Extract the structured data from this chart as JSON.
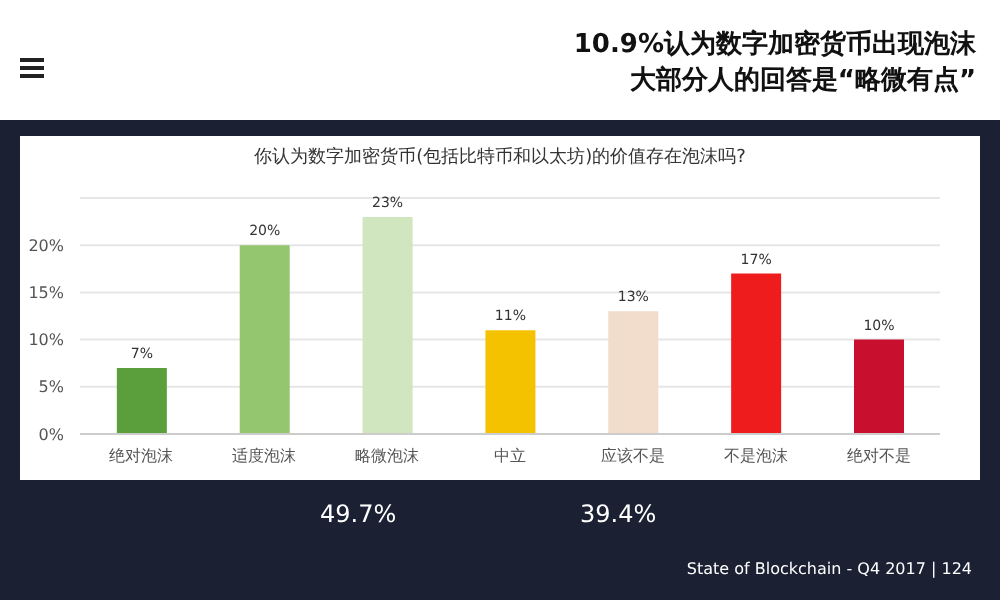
{
  "chart_data": {
    "type": "bar",
    "title": "你认为数字加密货币(包括比特币和以太坊)的价值存在泡沫吗?",
    "subtitle": "10.9%认为数字加密货币出现泡沫",
    "categories": [
      "绝对泡沫",
      "适度泡沫",
      "略微泡沫",
      "中立",
      "应该不是",
      "不是泡沫",
      "绝对不是"
    ],
    "values": [
      7,
      20,
      23,
      11,
      13,
      17,
      10
    ],
    "colors": [
      "#5b9e3c",
      "#93c66f",
      "#cfe6bf",
      "#f5c200",
      "#f2dccb",
      "#ee1c1c",
      "#c8102e"
    ],
    "value_labels": [
      "7%",
      "20%",
      "23%",
      "11%",
      "13%",
      "17%",
      "10%"
    ],
    "ylim": [
      0,
      25
    ],
    "yticks": [
      {
        "value": 0,
        "label": "0%"
      },
      {
        "value": 5,
        "label": "5%"
      },
      {
        "value": 10,
        "label": "10%"
      },
      {
        "value": 15,
        "label": "15%"
      },
      {
        "value": 20,
        "label": "20%"
      }
    ],
    "grid": "y",
    "annotations": [
      "大部分人的回答是“略微有点”",
      "49.7%",
      "39.4%",
      "State of Blockchain - Q4 2017 | 124"
    ]
  }
}
